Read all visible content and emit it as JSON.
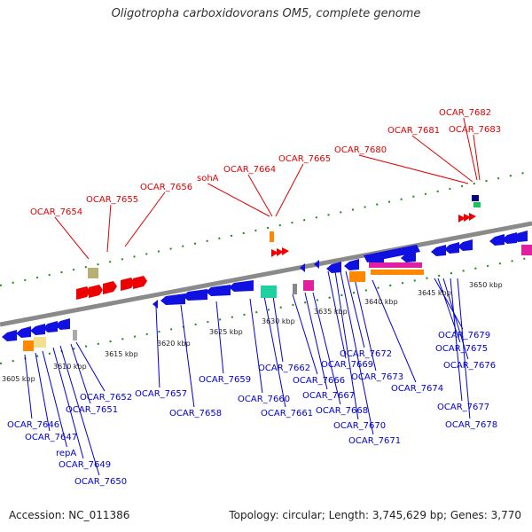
{
  "title": "Oligotropha carboxidovorans OM5, complete genome",
  "accession": "Accession: NC_011386",
  "summary": "Topology: circular; Length: 3,745,629 bp; Genes: 3,770",
  "colors": {
    "backbone": "#8a8a8a",
    "forward_track": "#1a7a1a",
    "red_label": "#e00000",
    "blue_label": "#0000d0",
    "gene_blue": "#1010e0",
    "gene_red": "#ee0000"
  },
  "ticks": [
    "3605 kbp",
    "3610 kbp",
    "3615 kbp",
    "3620 kbp",
    "3625 kbp",
    "3630 kbp",
    "3635 kbp",
    "3640 kbp",
    "3645 kbp",
    "3650 kbp"
  ],
  "upper_labels": [
    "OCAR_7654",
    "OCAR_7655",
    "OCAR_7656",
    "sohA",
    "OCAR_7664",
    "OCAR_7665",
    "OCAR_7680",
    "OCAR_7681",
    "OCAR_7682",
    "OCAR_7683"
  ],
  "lower_labels": [
    "OCAR_7646",
    "OCAR_7647",
    "repA",
    "OCAR_7649",
    "OCAR_7650",
    "OCAR_7651",
    "OCAR_7652",
    "OCAR_7657",
    "OCAR_7658",
    "OCAR_7659",
    "OCAR_7660",
    "OCAR_7661",
    "OCAR_7662",
    "OCAR_7666",
    "OCAR_7667",
    "OCAR_7668",
    "OCAR_7669",
    "OCAR_7670",
    "OCAR_7671",
    "OCAR_7672",
    "OCAR_7673",
    "OCAR_7674",
    "OCAR_7675",
    "OCAR_7676",
    "OCAR_7677",
    "OCAR_7678",
    "OCAR_7679"
  ]
}
